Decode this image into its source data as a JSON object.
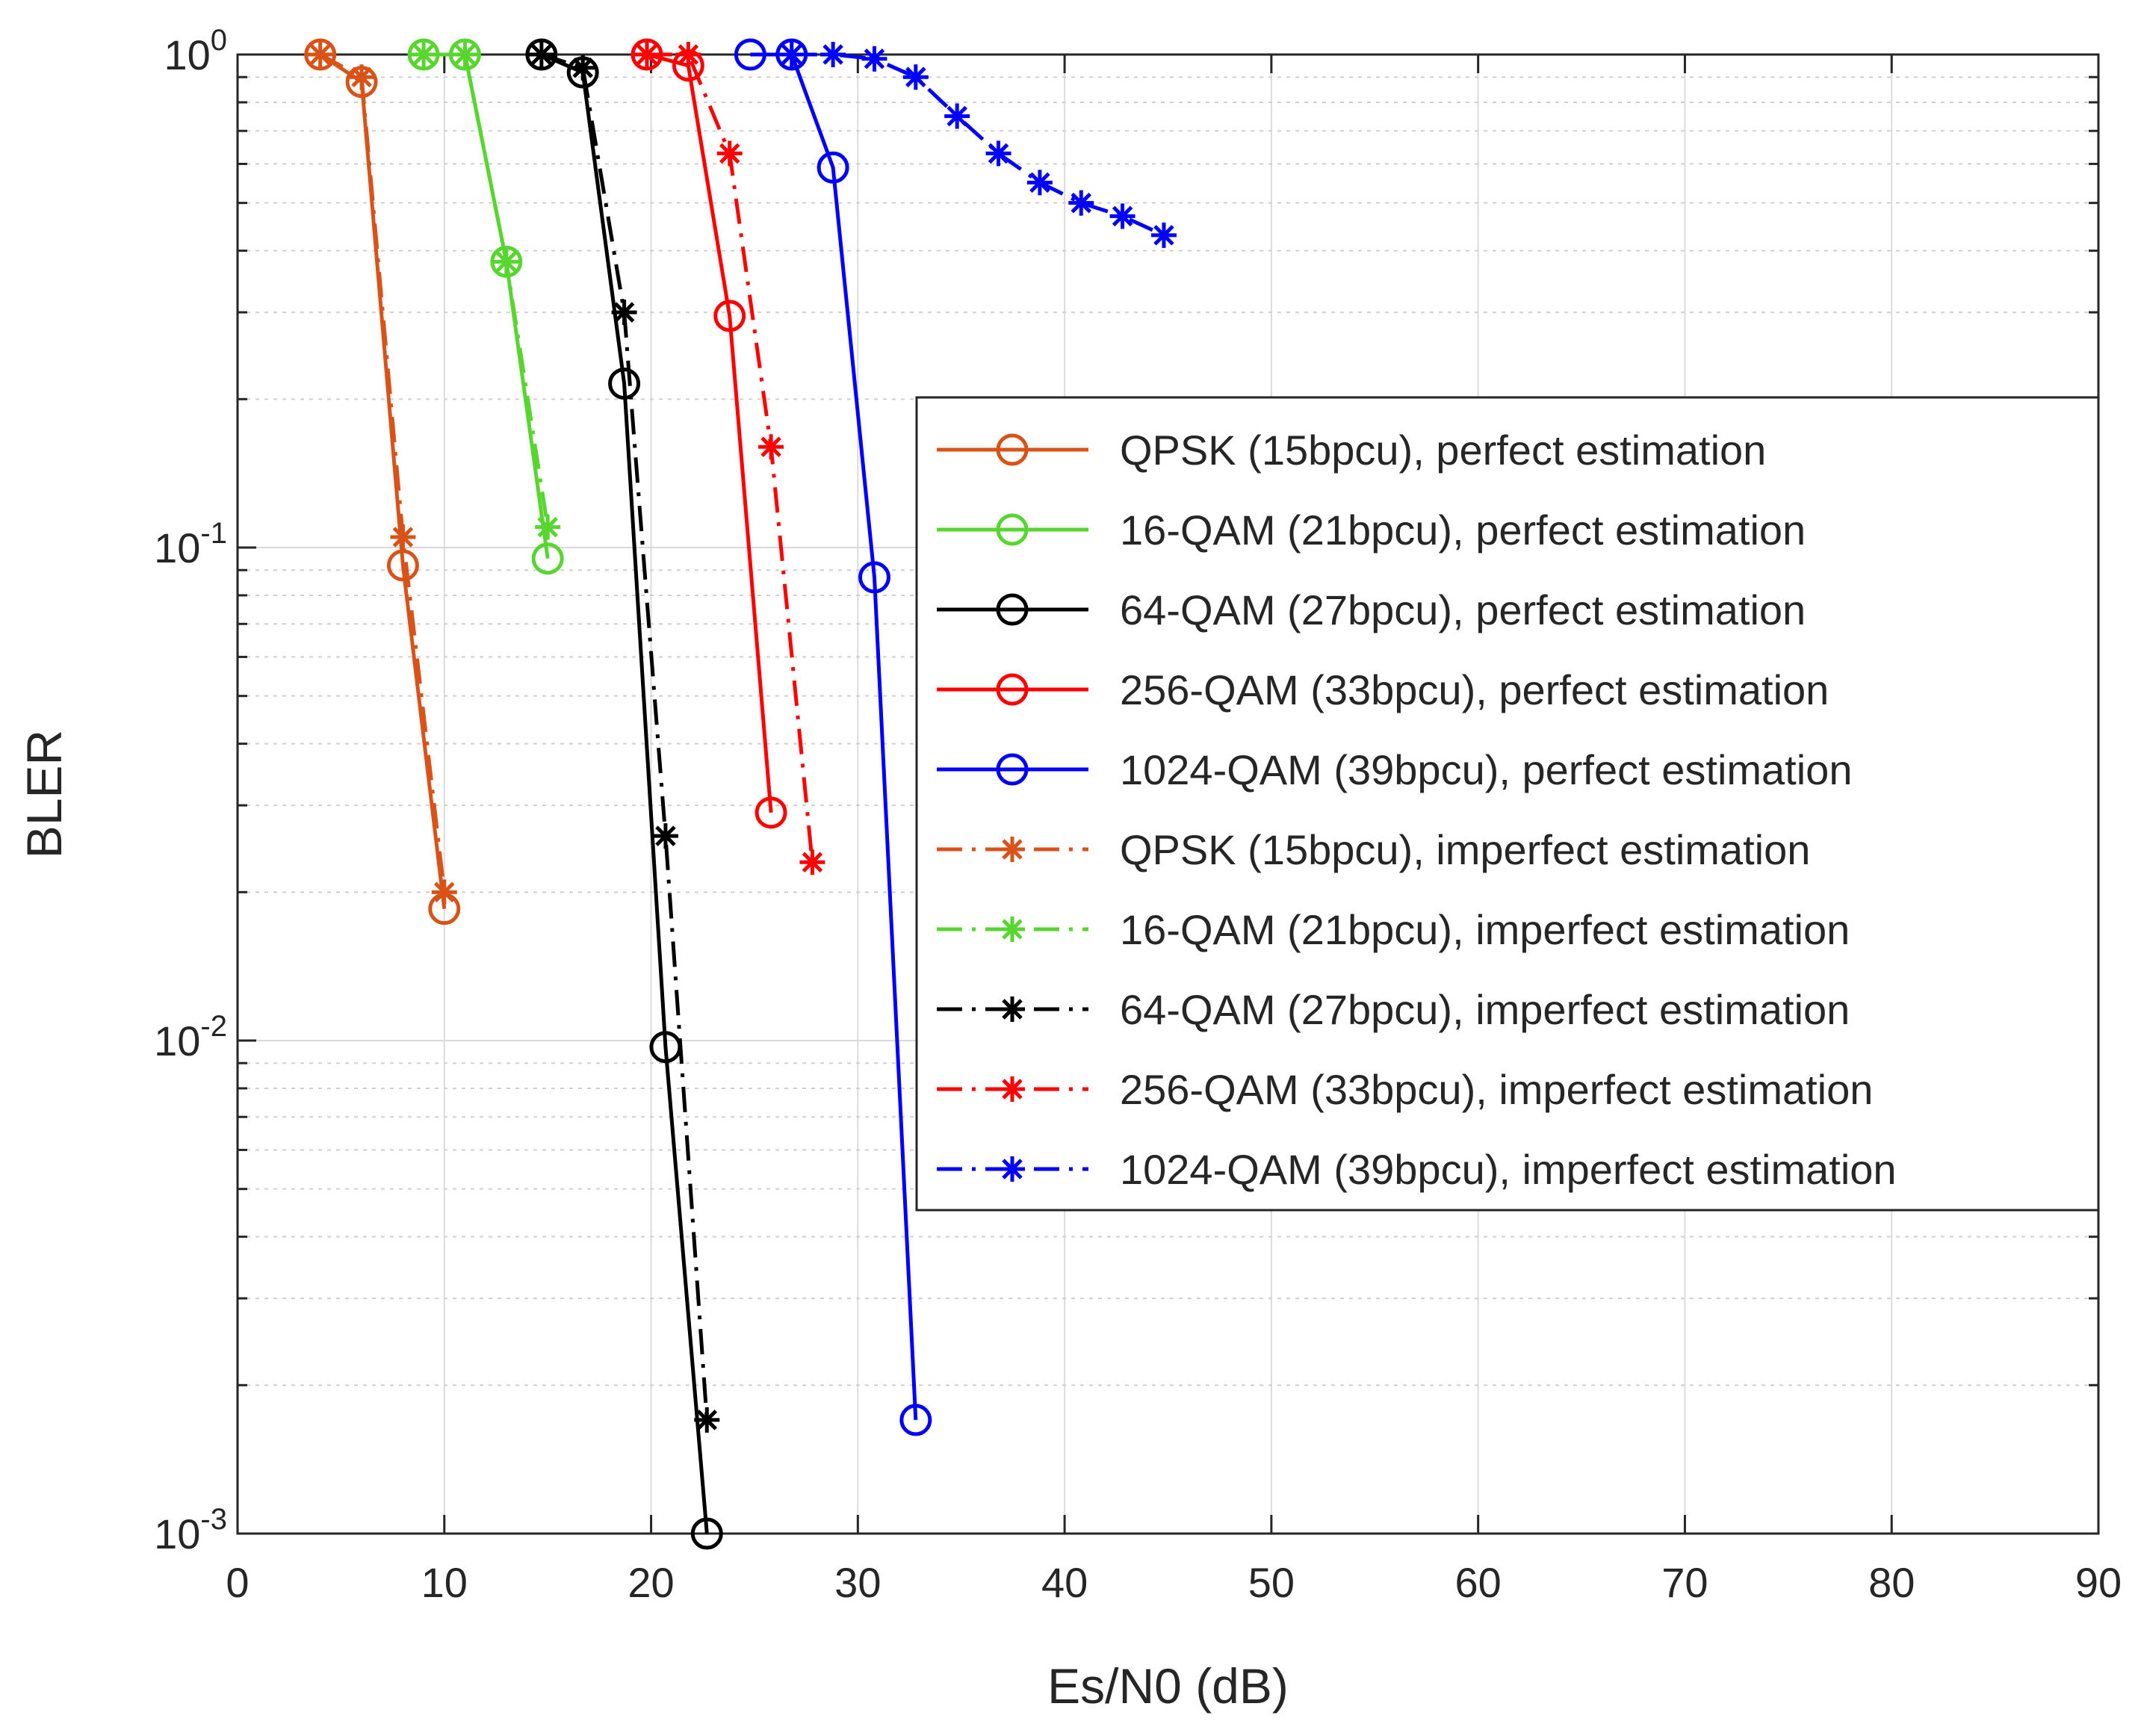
{
  "chart_data": {
    "type": "line",
    "title": "",
    "xlabel": "Es/N0 (dB)",
    "ylabel": "BLER",
    "xlim": [
      0,
      90
    ],
    "ylim": [
      0.001,
      1
    ],
    "yscale": "log",
    "grid": true,
    "legend_position": "center-right",
    "x_ticks": [
      0,
      10,
      20,
      30,
      40,
      50,
      60,
      70,
      80,
      90
    ],
    "x_tick_labels": [
      "0",
      "10",
      "20",
      "30",
      "40",
      "50",
      "60",
      "70",
      "80",
      "90"
    ],
    "y_ticks": [
      {
        "value": 1,
        "base": "10",
        "exp": "0"
      },
      {
        "value": 0.1,
        "base": "10",
        "exp": "-1"
      },
      {
        "value": 0.01,
        "base": "10",
        "exp": "-2"
      },
      {
        "value": 0.001,
        "base": "10",
        "exp": "-3"
      }
    ],
    "series": [
      {
        "name": "QPSK (15bpcu), perfect estimation",
        "color": "#D95319",
        "line": "solid",
        "marker": "circle",
        "x": [
          4,
          6,
          8,
          10
        ],
        "y": [
          1.0,
          0.88,
          0.092,
          0.0185
        ]
      },
      {
        "name": "16-QAM (21bpcu), perfect estimation",
        "color": "#56D62E",
        "line": "solid",
        "marker": "circle",
        "x": [
          9,
          11,
          13,
          15
        ],
        "y": [
          1.0,
          1.0,
          0.38,
          0.095
        ]
      },
      {
        "name": "64-QAM (27bpcu), perfect estimation",
        "color": "#000000",
        "line": "solid",
        "marker": "circle",
        "x": [
          14.7,
          16.7,
          18.7,
          20.7,
          22.7
        ],
        "y": [
          1.0,
          0.92,
          0.215,
          0.0097,
          0.001
        ]
      },
      {
        "name": "256-QAM (33bpcu), perfect estimation",
        "color": "#FF0000",
        "line": "solid",
        "marker": "circle",
        "x": [
          19.8,
          21.8,
          23.8,
          25.8
        ],
        "y": [
          1.0,
          0.95,
          0.295,
          0.029
        ]
      },
      {
        "name": "1024-QAM (39bpcu), perfect estimation",
        "color": "#0000FF",
        "line": "solid",
        "marker": "circle",
        "x": [
          24.8,
          26.8,
          28.8,
          30.8,
          32.8
        ],
        "y": [
          1.0,
          1.0,
          0.59,
          0.087,
          0.0017
        ]
      },
      {
        "name": "QPSK (15bpcu), imperfect estimation",
        "color": "#D95319",
        "line": "dashdot",
        "marker": "asterisk",
        "x": [
          4,
          6,
          8,
          10
        ],
        "y": [
          1.0,
          0.9,
          0.105,
          0.02
        ]
      },
      {
        "name": "16-QAM (21bpcu), imperfect estimation",
        "color": "#56D62E",
        "line": "dashdot",
        "marker": "asterisk",
        "x": [
          9,
          11,
          13,
          15
        ],
        "y": [
          1.0,
          1.0,
          0.38,
          0.11
        ]
      },
      {
        "name": "64-QAM (27bpcu), imperfect estimation",
        "color": "#000000",
        "line": "dashdot",
        "marker": "asterisk",
        "x": [
          14.7,
          16.7,
          18.7,
          20.7,
          22.7
        ],
        "y": [
          1.0,
          0.94,
          0.3,
          0.026,
          0.0017
        ]
      },
      {
        "name": "256-QAM (33bpcu), imperfect estimation",
        "color": "#FF0000",
        "line": "dashdot",
        "marker": "asterisk",
        "x": [
          19.8,
          21.8,
          23.8,
          25.8,
          27.8
        ],
        "y": [
          1.0,
          1.0,
          0.63,
          0.16,
          0.023
        ]
      },
      {
        "name": "1024-QAM (39bpcu), imperfect estimation",
        "color": "#0000FF",
        "line": "dashdot",
        "marker": "asterisk",
        "x": [
          26.8,
          28.8,
          30.8,
          32.8,
          34.8,
          36.8,
          38.8,
          40.8,
          42.8,
          44.8
        ],
        "y": [
          1.0,
          1.0,
          0.98,
          0.9,
          0.75,
          0.63,
          0.55,
          0.5,
          0.47,
          0.43
        ]
      }
    ]
  }
}
